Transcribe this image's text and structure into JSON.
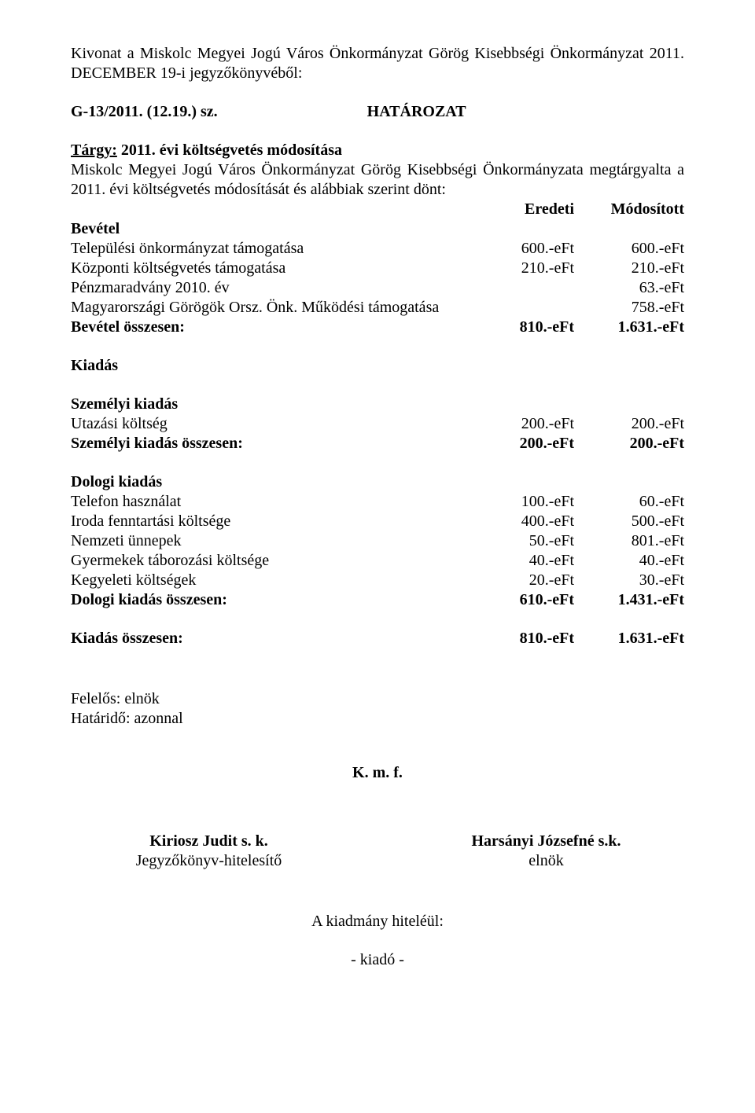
{
  "intro": {
    "p1": "Kivonat a Miskolc Megyei Jogú Város Önkormányzat Görög Kisebbségi Önkormányzat 2011. DECEMBER 19-i jegyzőkönyvéből:",
    "ref": "G-13/2011. (12.19.) sz.",
    "resol": "HATÁROZAT",
    "subject_label": "Tárgy:",
    "subject_value": "2011. évi költségvetés módosítása",
    "p2": "Miskolc Megyei Jogú Város Önkormányzat Görög Kisebbségi Önkormányzata megtárgyalta a 2011. évi költségvetés módosítását és alábbiak szerint dönt:"
  },
  "table": {
    "head_col1": "Eredeti",
    "head_col2": "Módosított",
    "bevetel_title": "Bevétel",
    "rows_bevetel": [
      {
        "label": "Települési önkormányzat támogatása",
        "c1": "600.-eFt",
        "c2": "600.-eFt"
      },
      {
        "label": "Központi költségvetés támogatása",
        "c1": "210.-eFt",
        "c2": "210.-eFt"
      },
      {
        "label": "Pénzmaradvány 2010. év",
        "c1": "",
        "c2": "63.-eFt"
      },
      {
        "label": "Magyarországi Görögök Orsz. Önk. Működési támogatása",
        "c1": "",
        "c2": "758.-eFt"
      }
    ],
    "bevetel_total": {
      "label": "Bevétel összesen:",
      "c1": "810.-eFt",
      "c2": "1.631.-eFt"
    },
    "kiadas_title": "Kiadás",
    "szemelyi_title": "Személyi kiadás",
    "rows_szemelyi": [
      {
        "label": "Utazási költség",
        "c1": "200.-eFt",
        "c2": "200.-eFt"
      }
    ],
    "szemelyi_total": {
      "label": "Személyi kiadás összesen:",
      "c1": "200.-eFt",
      "c2": "200.-eFt"
    },
    "dologi_title": "Dologi kiadás",
    "rows_dologi": [
      {
        "label": "Telefon használat",
        "c1": "100.-eFt",
        "c2": "60.-eFt"
      },
      {
        "label": "Iroda fenntartási költsége",
        "c1": "400.-eFt",
        "c2": "500.-eFt"
      },
      {
        "label": "Nemzeti ünnepek",
        "c1": "50.-eFt",
        "c2": "801.-eFt"
      },
      {
        "label": "Gyermekek táborozási költsége",
        "c1": "40.-eFt",
        "c2": "40.-eFt"
      },
      {
        "label": "Kegyeleti költségek",
        "c1": "20.-eFt",
        "c2": "30.-eFt"
      }
    ],
    "dologi_total": {
      "label": "Dologi kiadás összesen:",
      "c1": "610.-eFt",
      "c2": "1.431.-eFt"
    },
    "kiadas_total": {
      "label": "Kiadás összesen:",
      "c1": "810.-eFt",
      "c2": "1.631.-eFt"
    }
  },
  "footer": {
    "felelos": "Felelős: elnök",
    "hatarido": "Határidő: azonnal",
    "kmf": "K. m. f.",
    "sign_left_name": "Kiriosz Judit  s. k.",
    "sign_left_role": "Jegyzőkönyv-hitelesítő",
    "sign_right_name": "Harsányi Józsefné s.k.",
    "sign_right_role": "elnök",
    "auth": "A kiadmány hiteléül:",
    "issuer": "- kiadó -"
  }
}
